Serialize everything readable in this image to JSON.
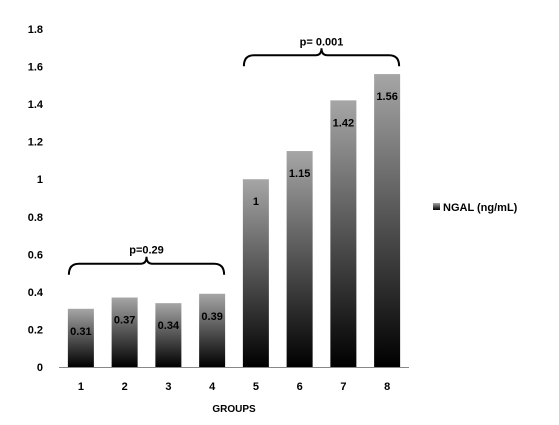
{
  "chart_data": {
    "type": "bar",
    "categories": [
      "1",
      "2",
      "3",
      "4",
      "5",
      "6",
      "7",
      "8"
    ],
    "series": [
      {
        "name": "NGAL (ng/mL)",
        "values": [
          0.31,
          0.37,
          0.34,
          0.39,
          1,
          1.15,
          1.42,
          1.56
        ]
      }
    ],
    "data_labels": [
      "0.31",
      "0.37",
      "0.34",
      "0.39",
      "1",
      "1.15",
      "1.42",
      "1.56"
    ],
    "xlabel": "GROUPS",
    "ylabel": "",
    "ylim": [
      0,
      1.8
    ],
    "yticks": [
      "0",
      "0.2",
      "0.4",
      "0.6",
      "0.8",
      "1",
      "1.2",
      "1.4",
      "1.6",
      "1.8"
    ],
    "grid": false,
    "legend_position": "right",
    "bar_gradient": [
      "#a6a6a6",
      "#000000"
    ],
    "annotations": [
      {
        "text": "p=0.29",
        "from_category": "1",
        "to_category": "4",
        "level": 0.55
      },
      {
        "text": "p= 0.001",
        "from_category": "5",
        "to_category": "8",
        "level": 1.66
      }
    ]
  }
}
